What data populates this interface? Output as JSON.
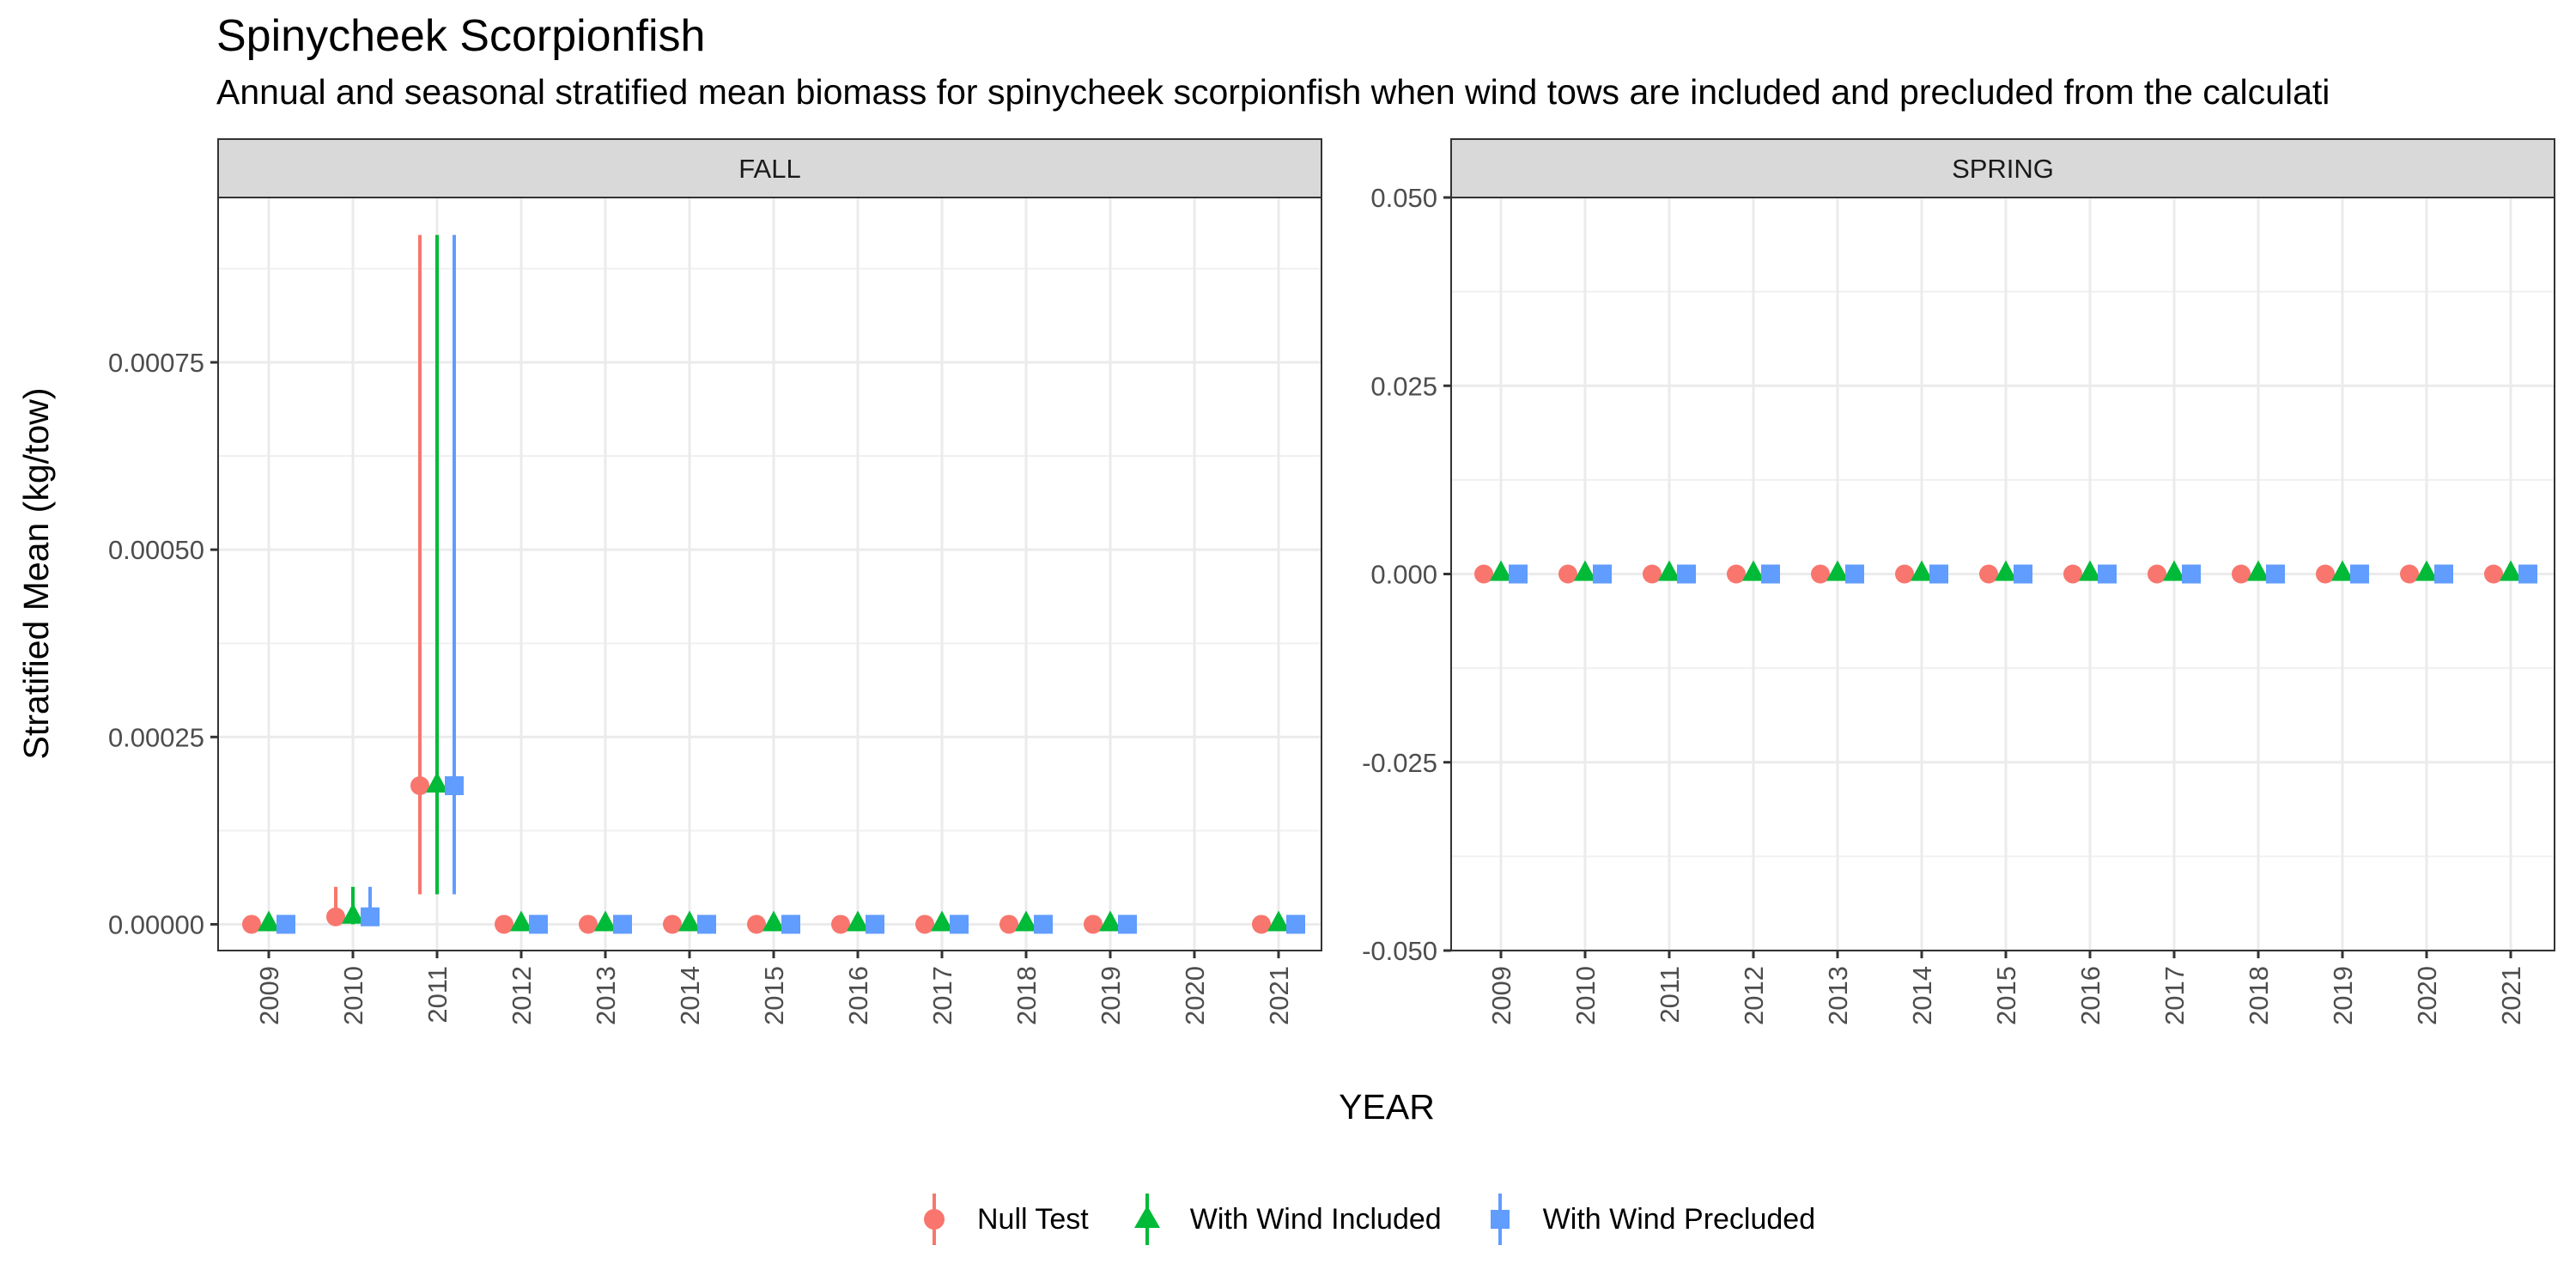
{
  "title": "Spinycheek Scorpionfish",
  "subtitle": "Annual and seasonal stratified mean biomass for spinycheek scorpionfish when wind tows are included and precluded from the calculati",
  "chart_data": [
    {
      "type": "scatter",
      "panel": "FALL",
      "xlabel": "YEAR",
      "ylabel": "Stratified Mean (kg/tow)",
      "categories": [
        "2009",
        "2010",
        "2011",
        "2012",
        "2013",
        "2014",
        "2015",
        "2016",
        "2017",
        "2018",
        "2019",
        "2020",
        "2021"
      ],
      "ylim": [
        -3.5e-05,
        0.00097
      ],
      "yticks": [
        0,
        0.00025,
        0.0005,
        0.00075
      ],
      "ytick_labels": [
        "0.00000",
        "0.00025",
        "0.00050",
        "0.00075"
      ],
      "series": [
        {
          "name": "Null Test",
          "color": "#F8766D",
          "shape": "circle",
          "values": [
            0,
            1e-05,
            0.000185,
            0,
            0,
            0,
            0,
            0,
            0,
            0,
            0,
            null,
            0
          ],
          "lower": [
            0,
            0,
            4e-05,
            0,
            0,
            0,
            0,
            0,
            0,
            0,
            0,
            null,
            0
          ],
          "upper": [
            0,
            5e-05,
            0.00092,
            0,
            0,
            0,
            0,
            0,
            0,
            0,
            0,
            null,
            0
          ]
        },
        {
          "name": "With Wind Included",
          "color": "#00BA38",
          "shape": "triangle",
          "values": [
            0,
            1e-05,
            0.000185,
            0,
            0,
            0,
            0,
            0,
            0,
            0,
            0,
            null,
            0
          ],
          "lower": [
            0,
            0,
            4e-05,
            0,
            0,
            0,
            0,
            0,
            0,
            0,
            0,
            null,
            0
          ],
          "upper": [
            0,
            5e-05,
            0.00092,
            0,
            0,
            0,
            0,
            0,
            0,
            0,
            0,
            null,
            0
          ]
        },
        {
          "name": "With Wind Precluded",
          "color": "#619CFF",
          "shape": "square",
          "values": [
            0,
            1e-05,
            0.000185,
            0,
            0,
            0,
            0,
            0,
            0,
            0,
            0,
            null,
            0
          ],
          "lower": [
            0,
            0,
            4e-05,
            0,
            0,
            0,
            0,
            0,
            0,
            0,
            0,
            null,
            0
          ],
          "upper": [
            0,
            5e-05,
            0.00092,
            0,
            0,
            0,
            0,
            0,
            0,
            0,
            0,
            null,
            0
          ]
        }
      ]
    },
    {
      "type": "scatter",
      "panel": "SPRING",
      "xlabel": "YEAR",
      "ylabel": "Stratified Mean (kg/tow)",
      "categories": [
        "2009",
        "2010",
        "2011",
        "2012",
        "2013",
        "2014",
        "2015",
        "2016",
        "2017",
        "2018",
        "2019",
        "2020",
        "2021"
      ],
      "ylim": [
        -0.05,
        0.05
      ],
      "yticks": [
        -0.05,
        -0.025,
        0,
        0.025,
        0.05
      ],
      "ytick_labels": [
        "-0.050",
        "-0.025",
        "0.000",
        "0.025",
        "0.050"
      ],
      "series": [
        {
          "name": "Null Test",
          "color": "#F8766D",
          "shape": "circle",
          "values": [
            0,
            0,
            0,
            0,
            0,
            0,
            0,
            0,
            0,
            0,
            0,
            0,
            0
          ]
        },
        {
          "name": "With Wind Included",
          "color": "#00BA38",
          "shape": "triangle",
          "values": [
            0,
            0,
            0,
            0,
            0,
            0,
            0,
            0,
            0,
            0,
            0,
            0,
            0
          ]
        },
        {
          "name": "With Wind Precluded",
          "color": "#619CFF",
          "shape": "square",
          "values": [
            0,
            0,
            0,
            0,
            0,
            0,
            0,
            0,
            0,
            0,
            0,
            0,
            0
          ]
        }
      ]
    }
  ],
  "legend": {
    "position": "bottom",
    "items": [
      {
        "label": "Null Test",
        "color": "#F8766D",
        "shape": "circle"
      },
      {
        "label": "With Wind Included",
        "color": "#00BA38",
        "shape": "triangle"
      },
      {
        "label": "With Wind Precluded",
        "color": "#619CFF",
        "shape": "square"
      }
    ]
  }
}
